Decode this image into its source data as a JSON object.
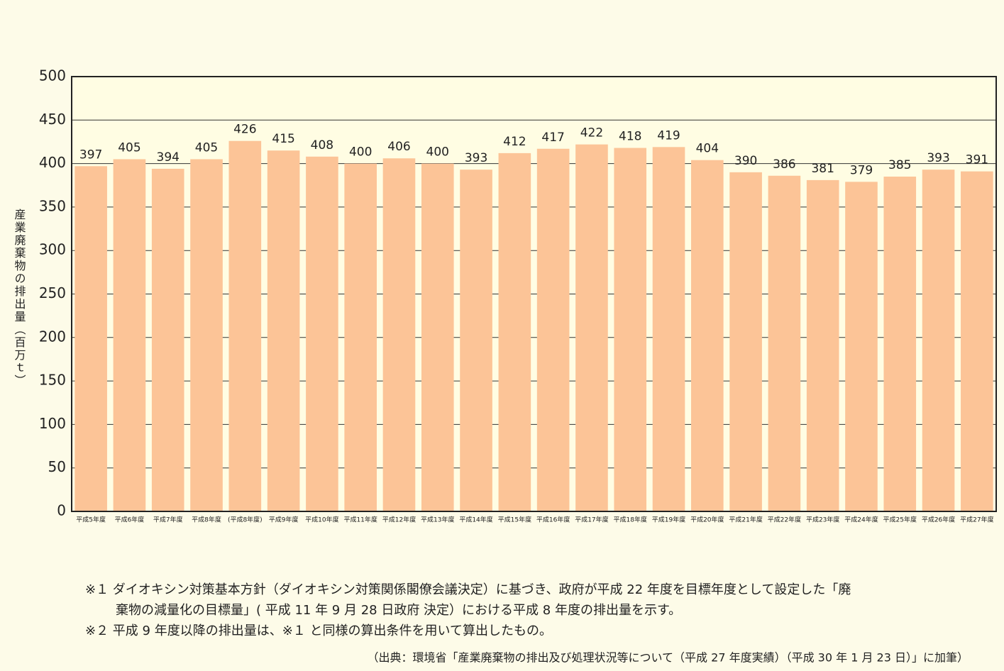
{
  "chart_data": {
    "type": "bar",
    "y_label": "産業廃棄物の排出量（百万ｔ）",
    "categories": [
      "平成5年度",
      "平成6年度",
      "平成7年度",
      "平成8年度",
      "(平成8年度)",
      "平成9年度",
      "平成10年度",
      "平成11年度",
      "平成12年度",
      "平成13年度",
      "平成14年度",
      "平成15年度",
      "平成16年度",
      "平成17年度",
      "平成18年度",
      "平成19年度",
      "平成20年度",
      "平成21年度",
      "平成22年度",
      "平成23年度",
      "平成24年度",
      "平成25年度",
      "平成26年度",
      "平成27年度"
    ],
    "values": [
      397,
      405,
      394,
      405,
      426,
      415,
      408,
      400,
      406,
      400,
      393,
      412,
      417,
      422,
      418,
      419,
      404,
      390,
      386,
      381,
      379,
      385,
      393,
      391
    ],
    "color": "#fcc497",
    "ylim": [
      0,
      500
    ],
    "yticks": [
      0,
      50,
      100,
      150,
      200,
      250,
      300,
      350,
      400,
      450,
      500
    ],
    "grid": true,
    "notes": [
      "※１ ダイオキシン対策基本方針（ダイオキシン対策関係閣僚会議決定）に基づき、政府が平成 22 年度を目標年度として設定した「廃",
      "棄物の減量化の目標量」( 平成 11 年 9 月 28 日政府 決定）における平成 8 年度の排出量を示す。",
      "※２ 平成 9 年度以降の排出量は、※１ と同様の算出条件を用いて算出したもの。"
    ],
    "source": "（出典：環境省「産業廃棄物の排出及び処理状況等について（平成 27 年度実績）（平成 30 年 1 月 23 日）」に加筆）"
  }
}
